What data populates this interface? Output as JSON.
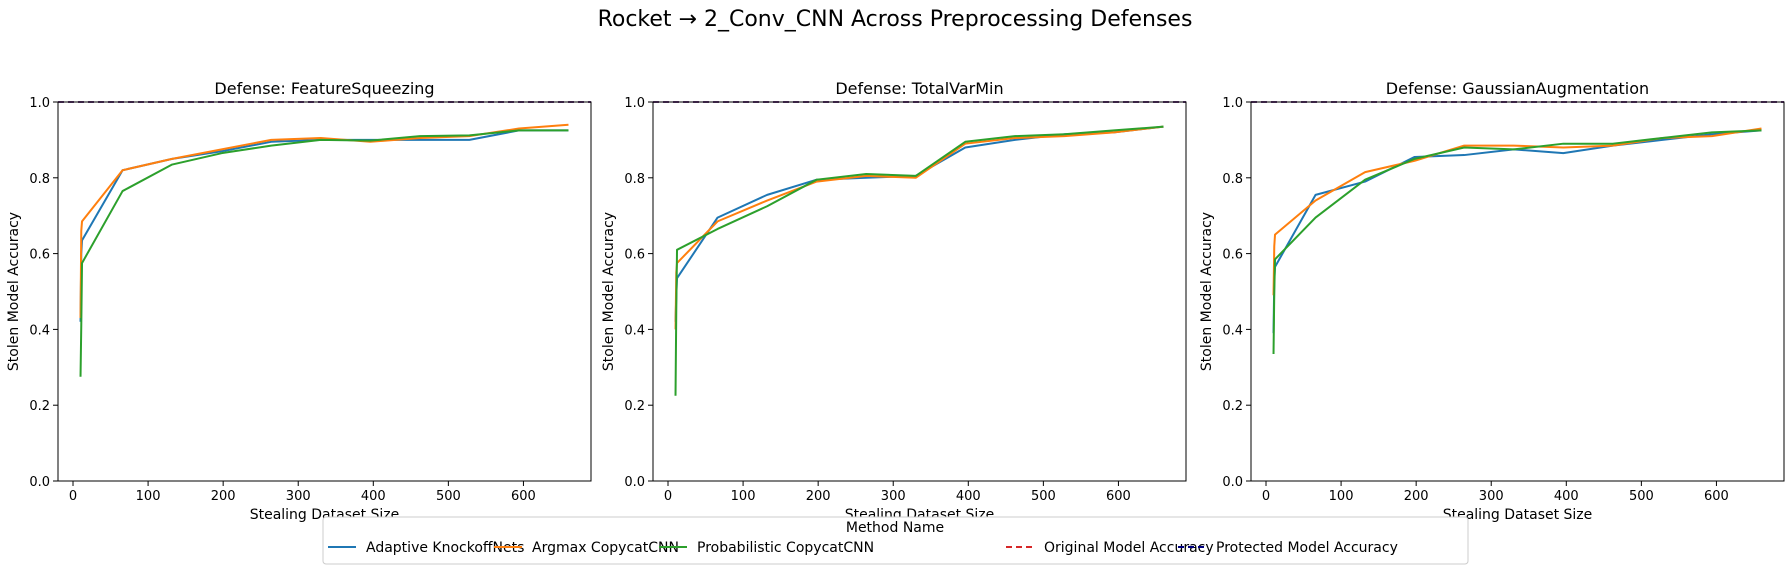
{
  "figure": {
    "title": "Rocket → 2_Conv_CNN Across Preprocessing Defenses"
  },
  "legend": {
    "title": "Method Name",
    "placement": "bottom-center",
    "entries": [
      {
        "label": "Adaptive KnockoffNets",
        "color": "#1f77b4",
        "style": "solid"
      },
      {
        "label": "Argmax CopycatCNN",
        "color": "#ff7f0e",
        "style": "solid"
      },
      {
        "label": "Probabilistic CopycatCNN",
        "color": "#2ca02c",
        "style": "solid"
      },
      {
        "label": "Original Model Accuracy",
        "color": "#d62728",
        "style": "dashed"
      },
      {
        "label": "Protected Model Accuracy",
        "color": "#000080",
        "style": "dashed"
      }
    ]
  },
  "chart_data": [
    {
      "type": "line",
      "title": "Defense: FeatureSqueezing",
      "xlabel": "Stealing Dataset Size",
      "ylabel": "Stolen Model Accuracy",
      "xlim": [
        -20,
        690
      ],
      "ylim": [
        0,
        1.0
      ],
      "xticks": [
        "0",
        "100",
        "200",
        "300",
        "400",
        "500",
        "600"
      ],
      "yticks": [
        "0.0",
        "0.2",
        "0.4",
        "0.6",
        "0.8",
        "1.0"
      ],
      "grid": false,
      "hlines": [
        {
          "name": "Original Model Accuracy",
          "y": 1.0,
          "color": "#d62728"
        },
        {
          "name": "Protected Model Accuracy",
          "y": 1.0,
          "color": "#000080"
        }
      ],
      "series": [
        {
          "name": "Adaptive KnockoffNets",
          "color": "#1f77b4",
          "x": [
            10,
            11,
            12,
            66,
            132,
            198,
            264,
            330,
            396,
            462,
            528,
            594,
            660
          ],
          "y": [
            0.42,
            0.6,
            0.635,
            0.82,
            0.85,
            0.87,
            0.895,
            0.9,
            0.9,
            0.9,
            0.9,
            0.925,
            0.925
          ]
        },
        {
          "name": "Argmax CopycatCNN",
          "color": "#ff7f0e",
          "x": [
            10,
            11,
            12,
            66,
            132,
            198,
            264,
            330,
            396,
            462,
            528,
            594,
            660
          ],
          "y": [
            0.43,
            0.66,
            0.685,
            0.82,
            0.85,
            0.875,
            0.9,
            0.905,
            0.895,
            0.905,
            0.91,
            0.93,
            0.94
          ]
        },
        {
          "name": "Probabilistic CopycatCNN",
          "color": "#2ca02c",
          "x": [
            10,
            11,
            12,
            66,
            132,
            198,
            264,
            330,
            396,
            462,
            528,
            594,
            660
          ],
          "y": [
            0.275,
            0.41,
            0.575,
            0.765,
            0.835,
            0.865,
            0.885,
            0.9,
            0.898,
            0.91,
            0.912,
            0.925,
            0.925
          ]
        }
      ]
    },
    {
      "type": "line",
      "title": "Defense: TotalVarMin",
      "xlabel": "Stealing Dataset Size",
      "ylabel": "Stolen Model Accuracy",
      "xlim": [
        -20,
        690
      ],
      "ylim": [
        0,
        1.0
      ],
      "xticks": [
        "0",
        "100",
        "200",
        "300",
        "400",
        "500",
        "600"
      ],
      "yticks": [
        "0.0",
        "0.2",
        "0.4",
        "0.6",
        "0.8",
        "1.0"
      ],
      "grid": false,
      "hlines": [
        {
          "name": "Original Model Accuracy",
          "y": 1.0,
          "color": "#d62728"
        },
        {
          "name": "Protected Model Accuracy",
          "y": 1.0,
          "color": "#000080"
        }
      ],
      "series": [
        {
          "name": "Adaptive KnockoffNets",
          "color": "#1f77b4",
          "x": [
            10,
            11,
            12,
            66,
            132,
            198,
            264,
            330,
            396,
            462,
            528,
            594,
            660
          ],
          "y": [
            0.42,
            0.49,
            0.535,
            0.695,
            0.755,
            0.795,
            0.8,
            0.805,
            0.88,
            0.9,
            0.915,
            0.92,
            0.935
          ]
        },
        {
          "name": "Argmax CopycatCNN",
          "color": "#ff7f0e",
          "x": [
            10,
            11,
            12,
            66,
            132,
            198,
            264,
            330,
            396,
            462,
            528,
            594,
            660
          ],
          "y": [
            0.4,
            0.55,
            0.575,
            0.685,
            0.74,
            0.79,
            0.805,
            0.8,
            0.89,
            0.905,
            0.91,
            0.92,
            0.935
          ]
        },
        {
          "name": "Probabilistic CopycatCNN",
          "color": "#2ca02c",
          "x": [
            10,
            11,
            12,
            66,
            132,
            198,
            264,
            330,
            396,
            462,
            528,
            594,
            660
          ],
          "y": [
            0.225,
            0.45,
            0.61,
            0.665,
            0.725,
            0.795,
            0.81,
            0.805,
            0.895,
            0.91,
            0.915,
            0.925,
            0.935
          ]
        }
      ]
    },
    {
      "type": "line",
      "title": "Defense: GaussianAugmentation",
      "xlabel": "Stealing Dataset Size",
      "ylabel": "Stolen Model Accuracy",
      "xlim": [
        -20,
        690
      ],
      "ylim": [
        0,
        1.0
      ],
      "xticks": [
        "0",
        "100",
        "200",
        "300",
        "400",
        "500",
        "600"
      ],
      "yticks": [
        "0.0",
        "0.2",
        "0.4",
        "0.6",
        "0.8",
        "1.0"
      ],
      "grid": false,
      "hlines": [
        {
          "name": "Original Model Accuracy",
          "y": 1.0,
          "color": "#d62728"
        },
        {
          "name": "Protected Model Accuracy",
          "y": 1.0,
          "color": "#000080"
        }
      ],
      "series": [
        {
          "name": "Adaptive KnockoffNets",
          "color": "#1f77b4",
          "x": [
            10,
            11,
            12,
            66,
            132,
            198,
            264,
            330,
            396,
            462,
            528,
            594,
            660
          ],
          "y": [
            0.39,
            0.53,
            0.565,
            0.755,
            0.79,
            0.855,
            0.86,
            0.875,
            0.865,
            0.885,
            0.9,
            0.915,
            0.925
          ]
        },
        {
          "name": "Argmax CopycatCNN",
          "color": "#ff7f0e",
          "x": [
            10,
            11,
            12,
            66,
            132,
            198,
            264,
            330,
            396,
            462,
            528,
            594,
            660
          ],
          "y": [
            0.49,
            0.62,
            0.65,
            0.74,
            0.815,
            0.845,
            0.885,
            0.885,
            0.88,
            0.885,
            0.905,
            0.91,
            0.93
          ]
        },
        {
          "name": "Probabilistic CopycatCNN",
          "color": "#2ca02c",
          "x": [
            10,
            11,
            12,
            66,
            132,
            198,
            264,
            330,
            396,
            462,
            528,
            594,
            660
          ],
          "y": [
            0.335,
            0.5,
            0.585,
            0.695,
            0.795,
            0.85,
            0.88,
            0.875,
            0.89,
            0.89,
            0.905,
            0.92,
            0.925
          ]
        }
      ]
    }
  ]
}
